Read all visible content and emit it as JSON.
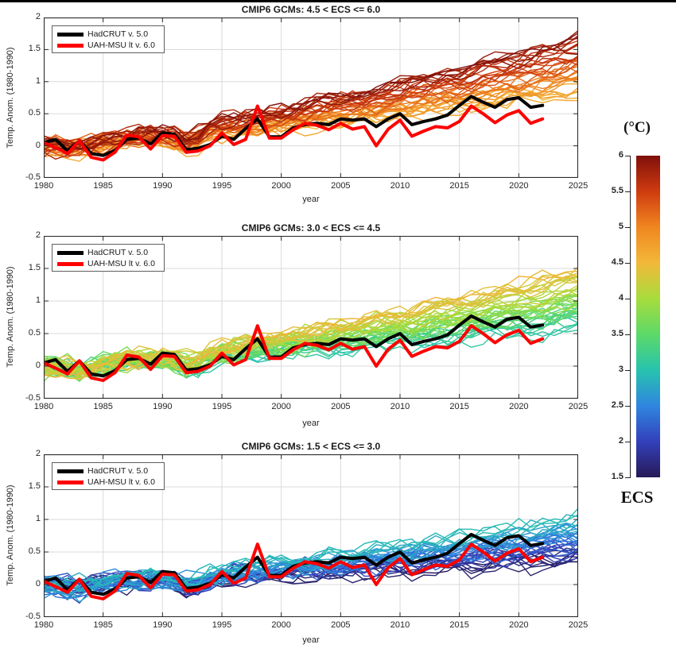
{
  "figure": {
    "background": "#ffffff",
    "top_border_color": "#000000"
  },
  "chart_data": {
    "type": "line",
    "panels": [
      {
        "title": "CMIP6 GCMs: 4.5 < ECS <= 6.0",
        "xlabel": "year",
        "ylabel": "Temp. Anom. (1980-1990)",
        "xlim": [
          1980,
          2025
        ],
        "ylim": [
          -0.5,
          2
        ],
        "xticks": [
          1980,
          1985,
          1990,
          1995,
          2000,
          2005,
          2010,
          2015,
          2020,
          2025
        ],
        "yticks": [
          2,
          1.5,
          1,
          0.5,
          0,
          -0.5
        ],
        "grid": true,
        "legend": {
          "position": "top-left",
          "entries": [
            {
              "label": "HadCRUT v. 5.0",
              "color": "#000000"
            },
            {
              "label": "UAH-MSU lt v. 6.0",
              "color": "#ff0000"
            }
          ]
        },
        "ensemble": {
          "description": "CMIP6 GCM members colored by ECS (4.5-6.0 C), anomalies rise from ~0 in 1980 to ~0.8-1.7 C by 2025",
          "n_members": 38,
          "ecs_min": 4.5,
          "ecs_max": 6.0,
          "end_anom_min": 0.8,
          "end_anom_max": 1.7,
          "seed": 101
        }
      },
      {
        "title": "CMIP6 GCMs: 3.0 < ECS <= 4.5",
        "xlabel": "year",
        "ylabel": "Temp. Anom. (1980-1990)",
        "xlim": [
          1980,
          2025
        ],
        "ylim": [
          -0.5,
          2
        ],
        "xticks": [
          1980,
          1985,
          1990,
          1995,
          2000,
          2005,
          2010,
          2015,
          2020,
          2025
        ],
        "yticks": [
          2,
          1.5,
          1,
          0.5,
          0,
          -0.5
        ],
        "grid": true,
        "legend": {
          "position": "top-left",
          "entries": [
            {
              "label": "HadCRUT v. 5.0",
              "color": "#000000"
            },
            {
              "label": "UAH-MSU lt v. 6.0",
              "color": "#ff0000"
            }
          ]
        },
        "ensemble": {
          "description": "CMIP6 GCM members colored by ECS (3.0-4.5 C), anomalies rise from ~0 in 1980 to ~0.55-1.45 C by 2025",
          "n_members": 45,
          "ecs_min": 3.0,
          "ecs_max": 4.5,
          "end_anom_min": 0.55,
          "end_anom_max": 1.45,
          "seed": 202
        }
      },
      {
        "title": "CMIP6 GCMs: 1.5 < ECS <= 3.0",
        "xlabel": "year",
        "ylabel": "Temp. Anom. (1980-1990)",
        "xlim": [
          1980,
          2025
        ],
        "ylim": [
          -0.5,
          2
        ],
        "xticks": [
          1980,
          1985,
          1990,
          1995,
          2000,
          2005,
          2010,
          2015,
          2020,
          2025
        ],
        "yticks": [
          2,
          1.5,
          1,
          0.5,
          0,
          -0.5
        ],
        "grid": true,
        "legend": {
          "position": "top-left",
          "entries": [
            {
              "label": "HadCRUT v. 5.0",
              "color": "#000000"
            },
            {
              "label": "UAH-MSU lt v. 6.0",
              "color": "#ff0000"
            }
          ]
        },
        "ensemble": {
          "description": "CMIP6 GCM members colored by ECS (1.5-3.0 C), anomalies rise from ~0 in 1980 to ~0.32-1.0 C by 2025",
          "n_members": 40,
          "ecs_min": 1.5,
          "ecs_max": 3.0,
          "end_anom_min": 0.32,
          "end_anom_max": 1.0,
          "seed": 303
        }
      }
    ],
    "observations": {
      "years": [
        1980,
        1981,
        1982,
        1983,
        1984,
        1985,
        1986,
        1987,
        1988,
        1989,
        1990,
        1991,
        1992,
        1993,
        1994,
        1995,
        1996,
        1997,
        1998,
        1999,
        2000,
        2001,
        2002,
        2003,
        2004,
        2005,
        2006,
        2007,
        2008,
        2009,
        2010,
        2011,
        2012,
        2013,
        2014,
        2015,
        2016,
        2017,
        2018,
        2019,
        2020,
        2021,
        2022
      ],
      "series": [
        {
          "name": "HadCRUT v. 5.0",
          "color": "#000000",
          "values": [
            0.05,
            0.1,
            -0.08,
            0.08,
            -0.12,
            -0.15,
            -0.07,
            0.1,
            0.12,
            0.03,
            0.2,
            0.18,
            -0.06,
            -0.04,
            0.02,
            0.15,
            0.1,
            0.27,
            0.42,
            0.14,
            0.14,
            0.28,
            0.33,
            0.35,
            0.33,
            0.42,
            0.4,
            0.42,
            0.3,
            0.42,
            0.5,
            0.33,
            0.38,
            0.42,
            0.48,
            0.63,
            0.77,
            0.68,
            0.6,
            0.72,
            0.75,
            0.6,
            0.63
          ]
        },
        {
          "name": "UAH-MSU lt v. 6.0",
          "color": "#ff0000",
          "values": [
            0.05,
            -0.03,
            -0.12,
            0.08,
            -0.18,
            -0.22,
            -0.1,
            0.17,
            0.14,
            -0.05,
            0.16,
            0.15,
            -0.1,
            -0.08,
            0.0,
            0.2,
            0.02,
            0.1,
            0.62,
            0.12,
            0.12,
            0.25,
            0.35,
            0.32,
            0.25,
            0.35,
            0.26,
            0.3,
            0.0,
            0.26,
            0.4,
            0.15,
            0.23,
            0.3,
            0.28,
            0.38,
            0.62,
            0.5,
            0.36,
            0.48,
            0.55,
            0.35,
            0.42
          ]
        }
      ]
    },
    "colorbar": {
      "title": "(°C)",
      "label": "ECS",
      "min": 1.5,
      "max": 6.0,
      "ticks": [
        6,
        5.5,
        5,
        4.5,
        4,
        3.5,
        3,
        2.5,
        2,
        1.5
      ],
      "stops": [
        {
          "v": 6.0,
          "c": "#7f100b"
        },
        {
          "v": 5.5,
          "c": "#cf3b10"
        },
        {
          "v": 5.0,
          "c": "#f0861f"
        },
        {
          "v": 4.5,
          "c": "#f2b83a"
        },
        {
          "v": 4.0,
          "c": "#a8dc3c"
        },
        {
          "v": 3.5,
          "c": "#5cd969"
        },
        {
          "v": 3.0,
          "c": "#27c3ae"
        },
        {
          "v": 2.5,
          "c": "#2f86e0"
        },
        {
          "v": 2.0,
          "c": "#3340bb"
        },
        {
          "v": 1.5,
          "c": "#271a57"
        }
      ]
    }
  }
}
